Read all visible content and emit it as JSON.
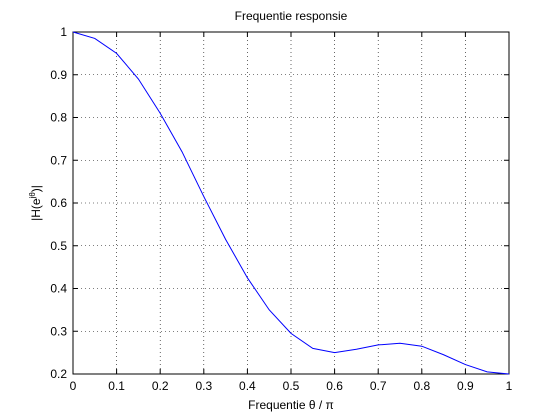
{
  "chart_data": {
    "type": "line",
    "title": "Frequentie responsie",
    "xlabel": "Frequentie θ / π",
    "ylabel": {
      "base": "|H(e",
      "sup": "jθ",
      "end": ")|"
    },
    "x": [
      0,
      0.05,
      0.1,
      0.15,
      0.2,
      0.25,
      0.3,
      0.35,
      0.4,
      0.45,
      0.5,
      0.55,
      0.6,
      0.65,
      0.7,
      0.75,
      0.8,
      0.85,
      0.9,
      0.95,
      1
    ],
    "series": [
      {
        "color": "#0000ff",
        "values": [
          1.0,
          0.985,
          0.95,
          0.89,
          0.81,
          0.72,
          0.615,
          0.515,
          0.425,
          0.35,
          0.295,
          0.26,
          0.25,
          0.258,
          0.268,
          0.272,
          0.265,
          0.245,
          0.222,
          0.205,
          0.2
        ]
      }
    ],
    "xlim": [
      0,
      1
    ],
    "ylim": [
      0.2,
      1
    ],
    "xticks": [
      0,
      0.1,
      0.2,
      0.3,
      0.4,
      0.5,
      0.6,
      0.7,
      0.8,
      0.9,
      1
    ],
    "yticks": [
      0.2,
      0.3,
      0.4,
      0.5,
      0.6,
      0.7,
      0.8,
      0.9,
      1
    ],
    "grid": true
  }
}
